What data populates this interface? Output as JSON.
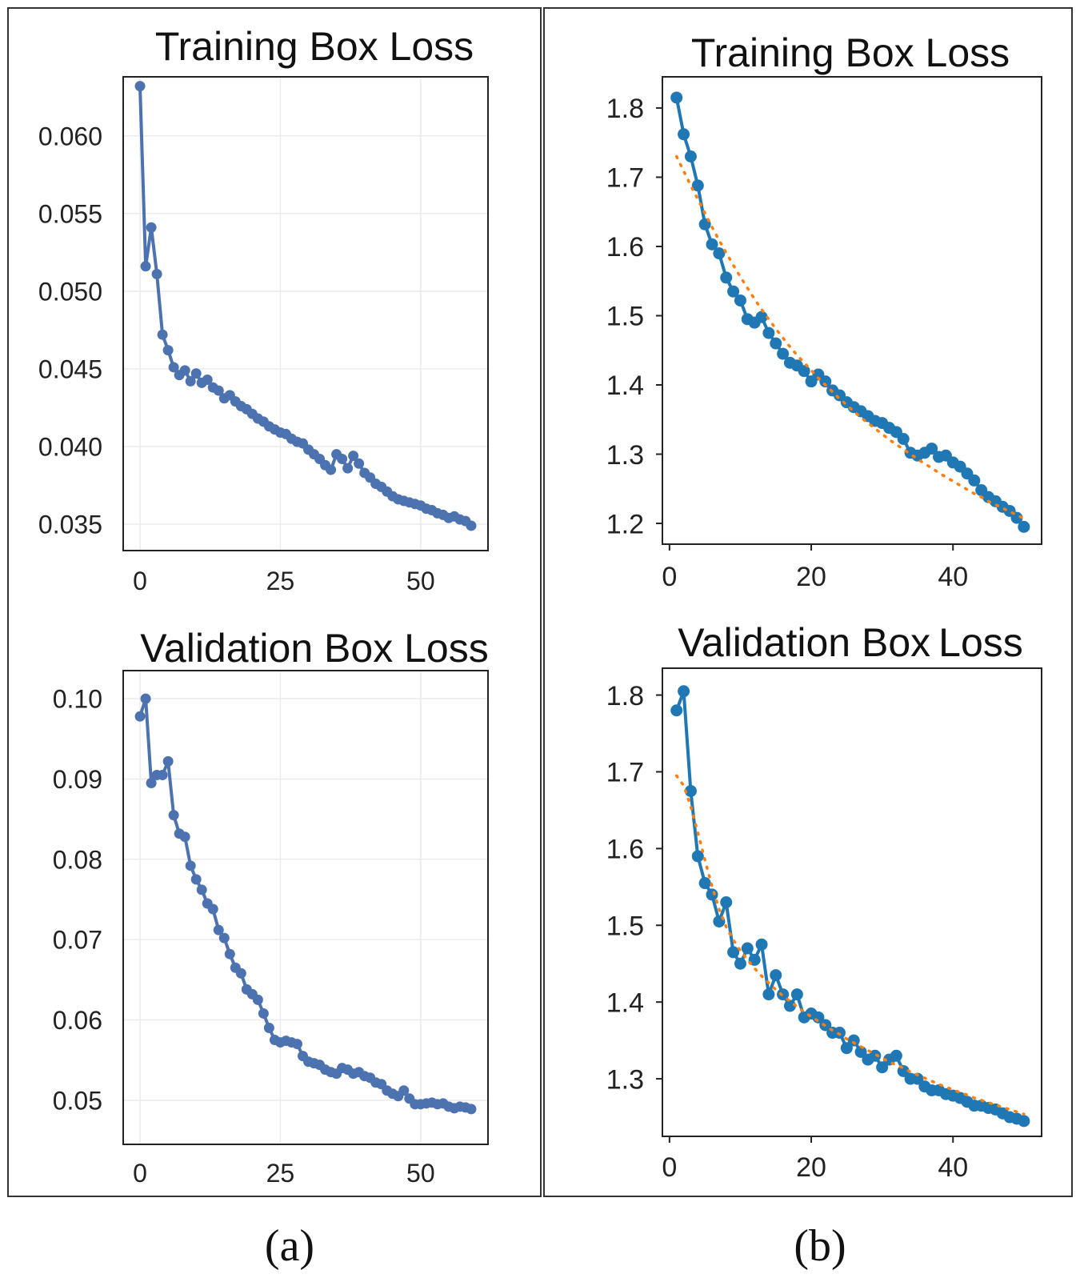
{
  "captions": [
    "(a)",
    "(b)"
  ],
  "chart_data": [
    {
      "type": "line",
      "title": "Training Box Loss",
      "xlabel": "",
      "ylabel": "",
      "xlim": [
        -3,
        62
      ],
      "ylim": [
        0.0333,
        0.0638
      ],
      "xticks": [
        0,
        25,
        50
      ],
      "yticks": [
        0.035,
        0.04,
        0.045,
        0.05,
        0.055,
        0.06
      ],
      "ytick_labels": [
        "0.035",
        "0.040",
        "0.045",
        "0.050",
        "0.055",
        "0.060"
      ],
      "grid": true,
      "series": [
        {
          "color": "#4c72b0",
          "style": "solid-markers",
          "x": [
            0,
            1,
            2,
            3,
            4,
            5,
            6,
            7,
            8,
            9,
            10,
            11,
            12,
            13,
            14,
            15,
            16,
            17,
            18,
            19,
            20,
            21,
            22,
            23,
            24,
            25,
            26,
            27,
            28,
            29,
            30,
            31,
            32,
            33,
            34,
            35,
            36,
            37,
            38,
            39,
            40,
            41,
            42,
            43,
            44,
            45,
            46,
            47,
            48,
            49,
            50,
            51,
            52,
            53,
            54,
            55,
            56,
            57,
            58,
            59
          ],
          "y": [
            0.0632,
            0.0516,
            0.0541,
            0.0511,
            0.0472,
            0.0462,
            0.0451,
            0.0446,
            0.0449,
            0.0442,
            0.0447,
            0.0441,
            0.0443,
            0.0438,
            0.0436,
            0.0431,
            0.0433,
            0.0429,
            0.0426,
            0.0424,
            0.0421,
            0.0418,
            0.0416,
            0.0413,
            0.0411,
            0.0409,
            0.0408,
            0.0405,
            0.0403,
            0.0402,
            0.0398,
            0.0395,
            0.0392,
            0.0388,
            0.0385,
            0.0395,
            0.0392,
            0.0386,
            0.0394,
            0.0389,
            0.0383,
            0.038,
            0.0376,
            0.0374,
            0.0371,
            0.0368,
            0.0366,
            0.0365,
            0.0364,
            0.0363,
            0.0362,
            0.036,
            0.0359,
            0.0357,
            0.0356,
            0.0354,
            0.0355,
            0.0353,
            0.0352,
            0.0349
          ]
        }
      ]
    },
    {
      "type": "line",
      "title": "Training Box Loss",
      "xlabel": "",
      "ylabel": "",
      "xlim": [
        -1,
        52.5
      ],
      "ylim": [
        1.17,
        1.845
      ],
      "xticks": [
        0,
        20,
        40
      ],
      "yticks": [
        1.2,
        1.3,
        1.4,
        1.5,
        1.6,
        1.7,
        1.8
      ],
      "ytick_labels": [
        "1.2",
        "1.3",
        "1.4",
        "1.5",
        "1.6",
        "1.7",
        "1.8"
      ],
      "grid": false,
      "series": [
        {
          "color": "#1f77b4",
          "style": "solid-markers",
          "x": [
            1,
            2,
            3,
            4,
            5,
            6,
            7,
            8,
            9,
            10,
            11,
            12,
            13,
            14,
            15,
            16,
            17,
            18,
            19,
            20,
            21,
            22,
            23,
            24,
            25,
            26,
            27,
            28,
            29,
            30,
            31,
            32,
            33,
            34,
            35,
            36,
            37,
            38,
            39,
            40,
            41,
            42,
            43,
            44,
            45,
            46,
            47,
            48,
            49,
            50
          ],
          "y": [
            1.815,
            1.762,
            1.73,
            1.688,
            1.632,
            1.603,
            1.59,
            1.555,
            1.535,
            1.522,
            1.495,
            1.49,
            1.498,
            1.475,
            1.46,
            1.445,
            1.432,
            1.428,
            1.42,
            1.405,
            1.415,
            1.405,
            1.392,
            1.385,
            1.375,
            1.368,
            1.362,
            1.355,
            1.348,
            1.345,
            1.338,
            1.332,
            1.322,
            1.302,
            1.298,
            1.302,
            1.308,
            1.296,
            1.298,
            1.288,
            1.282,
            1.272,
            1.262,
            1.248,
            1.238,
            1.232,
            1.224,
            1.218,
            1.208,
            1.195
          ]
        },
        {
          "color": "#ff7f0e",
          "style": "dotted",
          "x": [
            1,
            2,
            3,
            4,
            5,
            6,
            7,
            8,
            9,
            10,
            11,
            12,
            13,
            14,
            15,
            16,
            17,
            18,
            19,
            20,
            21,
            22,
            23,
            24,
            25,
            26,
            27,
            28,
            29,
            30,
            31,
            32,
            33,
            34,
            35,
            36,
            37,
            38,
            39,
            40,
            41,
            42,
            43,
            44,
            45,
            46,
            47,
            48,
            49,
            50
          ],
          "y": [
            1.73,
            1.709,
            1.688,
            1.668,
            1.648,
            1.628,
            1.609,
            1.591,
            1.573,
            1.556,
            1.54,
            1.524,
            1.509,
            1.495,
            1.481,
            1.468,
            1.455,
            1.443,
            1.432,
            1.421,
            1.41,
            1.4,
            1.39,
            1.38,
            1.371,
            1.362,
            1.353,
            1.345,
            1.337,
            1.329,
            1.321,
            1.314,
            1.307,
            1.3,
            1.293,
            1.286,
            1.28,
            1.273,
            1.267,
            1.261,
            1.255,
            1.249,
            1.243,
            1.238,
            1.232,
            1.227,
            1.222,
            1.217,
            1.212,
            1.207
          ]
        }
      ]
    },
    {
      "type": "line",
      "title": "Validation Box Loss",
      "xlabel": "",
      "ylabel": "",
      "xlim": [
        -3,
        62
      ],
      "ylim": [
        0.0445,
        0.1035
      ],
      "xticks": [
        0,
        25,
        50
      ],
      "yticks": [
        0.05,
        0.06,
        0.07,
        0.08,
        0.09,
        0.1
      ],
      "ytick_labels": [
        "0.05",
        "0.06",
        "0.07",
        "0.08",
        "0.09",
        "0.10"
      ],
      "grid": true,
      "series": [
        {
          "color": "#4c72b0",
          "style": "solid-markers",
          "x": [
            0,
            1,
            2,
            3,
            4,
            5,
            6,
            7,
            8,
            9,
            10,
            11,
            12,
            13,
            14,
            15,
            16,
            17,
            18,
            19,
            20,
            21,
            22,
            23,
            24,
            25,
            26,
            27,
            28,
            29,
            30,
            31,
            32,
            33,
            34,
            35,
            36,
            37,
            38,
            39,
            40,
            41,
            42,
            43,
            44,
            45,
            46,
            47,
            48,
            49,
            50,
            51,
            52,
            53,
            54,
            55,
            56,
            57,
            58,
            59
          ],
          "y": [
            0.0978,
            0.1,
            0.0895,
            0.0905,
            0.0905,
            0.0922,
            0.0855,
            0.0832,
            0.0828,
            0.0792,
            0.0775,
            0.0762,
            0.0745,
            0.0738,
            0.0712,
            0.0702,
            0.0682,
            0.0665,
            0.0658,
            0.0638,
            0.0632,
            0.0625,
            0.0608,
            0.059,
            0.0575,
            0.0572,
            0.0574,
            0.0572,
            0.057,
            0.0555,
            0.0548,
            0.0546,
            0.0544,
            0.0538,
            0.0535,
            0.0533,
            0.054,
            0.0538,
            0.0533,
            0.0535,
            0.053,
            0.0528,
            0.0522,
            0.052,
            0.0512,
            0.0508,
            0.0505,
            0.0512,
            0.0502,
            0.0495,
            0.0495,
            0.0496,
            0.0497,
            0.0495,
            0.0496,
            0.0492,
            0.049,
            0.0492,
            0.0491,
            0.0489
          ]
        }
      ]
    },
    {
      "type": "line",
      "title": "Validation Box Loss",
      "xlabel": "",
      "ylabel": "",
      "xlim": [
        -1,
        52.5
      ],
      "ylim": [
        1.225,
        1.835
      ],
      "xticks": [
        0,
        20,
        40
      ],
      "yticks": [
        1.3,
        1.4,
        1.5,
        1.6,
        1.7,
        1.8
      ],
      "ytick_labels": [
        "1.3",
        "1.4",
        "1.5",
        "1.6",
        "1.7",
        "1.8"
      ],
      "grid": false,
      "series": [
        {
          "color": "#1f77b4",
          "style": "solid-markers",
          "x": [
            1,
            2,
            3,
            4,
            5,
            6,
            7,
            8,
            9,
            10,
            11,
            12,
            13,
            14,
            15,
            16,
            17,
            18,
            19,
            20,
            21,
            22,
            23,
            24,
            25,
            26,
            27,
            28,
            29,
            30,
            31,
            32,
            33,
            34,
            35,
            36,
            37,
            38,
            39,
            40,
            41,
            42,
            43,
            44,
            45,
            46,
            47,
            48,
            49,
            50
          ],
          "y": [
            1.78,
            1.805,
            1.675,
            1.59,
            1.555,
            1.54,
            1.505,
            1.53,
            1.465,
            1.45,
            1.47,
            1.455,
            1.475,
            1.41,
            1.435,
            1.41,
            1.395,
            1.41,
            1.38,
            1.385,
            1.38,
            1.37,
            1.36,
            1.36,
            1.34,
            1.35,
            1.335,
            1.325,
            1.33,
            1.315,
            1.325,
            1.33,
            1.31,
            1.3,
            1.3,
            1.29,
            1.285,
            1.285,
            1.28,
            1.278,
            1.275,
            1.27,
            1.265,
            1.265,
            1.262,
            1.26,
            1.255,
            1.25,
            1.248,
            1.245
          ]
        },
        {
          "color": "#ff7f0e",
          "style": "dotted",
          "x": [
            1,
            2,
            3,
            4,
            5,
            6,
            7,
            8,
            9,
            10,
            11,
            12,
            13,
            14,
            15,
            16,
            17,
            18,
            19,
            20,
            21,
            22,
            23,
            24,
            25,
            26,
            27,
            28,
            29,
            30,
            31,
            32,
            33,
            34,
            35,
            36,
            37,
            38,
            39,
            40,
            41,
            42,
            43,
            44,
            45,
            46,
            47,
            48,
            49,
            50
          ],
          "y": [
            1.695,
            1.682,
            1.655,
            1.621,
            1.585,
            1.551,
            1.521,
            1.498,
            1.481,
            1.467,
            1.455,
            1.444,
            1.434,
            1.425,
            1.416,
            1.408,
            1.401,
            1.394,
            1.387,
            1.381,
            1.375,
            1.369,
            1.363,
            1.358,
            1.352,
            1.347,
            1.342,
            1.337,
            1.332,
            1.327,
            1.322,
            1.318,
            1.314,
            1.309,
            1.305,
            1.301,
            1.297,
            1.293,
            1.289,
            1.286,
            1.282,
            1.279,
            1.275,
            1.272,
            1.269,
            1.266,
            1.263,
            1.26,
            1.257,
            1.254
          ]
        }
      ]
    }
  ]
}
